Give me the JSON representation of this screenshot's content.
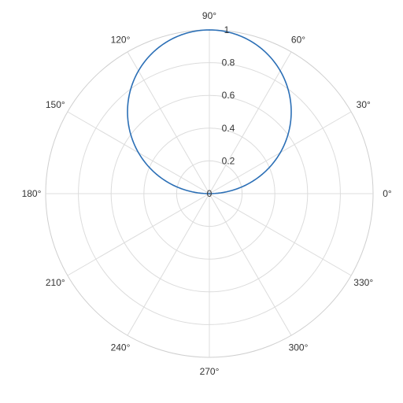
{
  "chart_data": {
    "type": "line",
    "subtype": "polar",
    "title": "",
    "series": [
      {
        "color": "#2b6fb6",
        "equation": "r = sin(theta)",
        "theta_deg": [
          0,
          10,
          20,
          30,
          40,
          50,
          60,
          70,
          80,
          90,
          100,
          110,
          120,
          130,
          140,
          150,
          160,
          170,
          180
        ],
        "r": [
          0,
          0.174,
          0.342,
          0.5,
          0.643,
          0.766,
          0.866,
          0.94,
          0.985,
          1,
          0.985,
          0.94,
          0.866,
          0.766,
          0.643,
          0.5,
          0.342,
          0.174,
          0
        ]
      }
    ],
    "r_range": [
      0,
      1
    ],
    "r_ticks": [
      "0",
      "0.2",
      "0.4",
      "0.6",
      "0.8",
      "1"
    ],
    "theta_ticks": [
      "0°",
      "30°",
      "60°",
      "90°",
      "120°",
      "150°",
      "180°",
      "210°",
      "240°",
      "270°",
      "300°",
      "330°"
    ],
    "grid": true,
    "legend": "none"
  }
}
